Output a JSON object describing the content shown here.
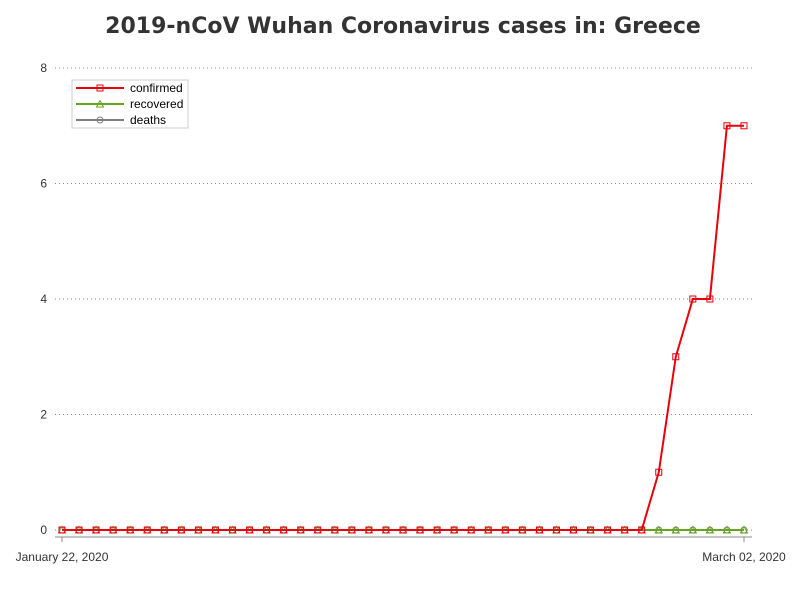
{
  "chart_data": {
    "type": "line",
    "title": "2019-nCoV Wuhan Coronavirus cases in: Greece",
    "xlabel": "",
    "ylabel": "",
    "x_start": "January 22, 2020",
    "x_end": "March 02, 2020",
    "x_tick_labels": [
      "January 22, 2020",
      "March 02, 2020"
    ],
    "ylim": [
      0,
      8
    ],
    "y_ticks": [
      0,
      2,
      4,
      6,
      8
    ],
    "grid": "horizontal dotted",
    "legend_position": "top-left",
    "series": [
      {
        "name": "confirmed",
        "color": "#e8000b",
        "marker": "square",
        "values": [
          0,
          0,
          0,
          0,
          0,
          0,
          0,
          0,
          0,
          0,
          0,
          0,
          0,
          0,
          0,
          0,
          0,
          0,
          0,
          0,
          0,
          0,
          0,
          0,
          0,
          0,
          0,
          0,
          0,
          0,
          0,
          0,
          0,
          0,
          0,
          1,
          3,
          4,
          4,
          7,
          7
        ]
      },
      {
        "name": "recovered",
        "color": "#66a61e",
        "marker": "triangle",
        "values": [
          0,
          0,
          0,
          0,
          0,
          0,
          0,
          0,
          0,
          0,
          0,
          0,
          0,
          0,
          0,
          0,
          0,
          0,
          0,
          0,
          0,
          0,
          0,
          0,
          0,
          0,
          0,
          0,
          0,
          0,
          0,
          0,
          0,
          0,
          0,
          0,
          0,
          0,
          0,
          0,
          0
        ]
      },
      {
        "name": "deaths",
        "color": "#7f7f7f",
        "marker": "circle",
        "values": [
          0,
          0,
          0,
          0,
          0,
          0,
          0,
          0,
          0,
          0,
          0,
          0,
          0,
          0,
          0,
          0,
          0,
          0,
          0,
          0,
          0,
          0,
          0,
          0,
          0,
          0,
          0,
          0,
          0,
          0,
          0,
          0,
          0,
          0,
          0,
          0,
          0,
          0,
          0,
          0,
          0
        ]
      }
    ]
  }
}
